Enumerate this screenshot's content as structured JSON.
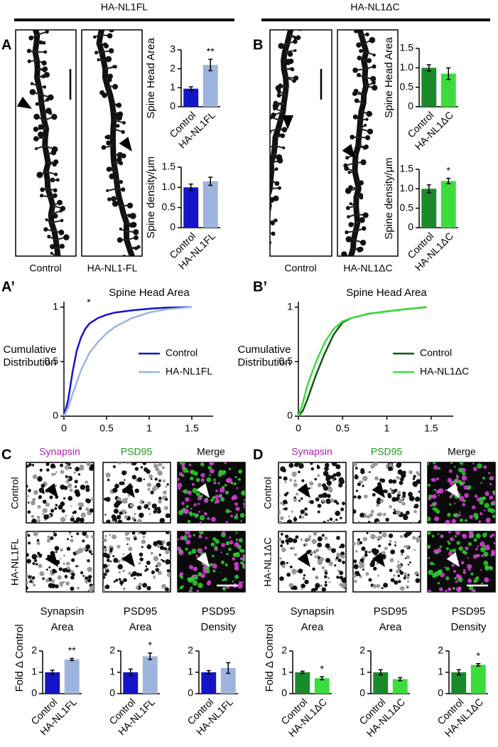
{
  "headers": [
    "HA-NL1FL",
    "HA-NL1ΔC"
  ],
  "panel_labels": [
    "A",
    "B",
    "A’",
    "B’",
    "C",
    "D"
  ],
  "images": {
    "A": [
      "Control",
      "HA-NL1-FL"
    ],
    "B": [
      "Control",
      "HA-NL1ΔC"
    ],
    "C": {
      "columns": [
        "Synapsin",
        "PSD95",
        "Merge"
      ],
      "rows": [
        "Control",
        "HA-NL1FL"
      ]
    },
    "D": {
      "columns": [
        "Synapsin",
        "PSD95",
        "Merge"
      ],
      "rows": [
        "Control",
        "HA-NL1ΔC"
      ]
    }
  },
  "chart_data": [
    {
      "type": "bar",
      "ylabel": "Spine Head Area",
      "categories": [
        "Control",
        "HA-NL1FL"
      ],
      "values": [
        0.95,
        2.2
      ],
      "errors": [
        0.1,
        0.3
      ],
      "colors": [
        "#1414c8",
        "#9db4de"
      ],
      "ylim": [
        0,
        3
      ],
      "yticks": [
        0,
        1,
        2,
        3
      ],
      "significance": "**"
    },
    {
      "type": "bar",
      "ylabel": "Spine density/μm",
      "categories": [
        "Control",
        "HA-NL1FL"
      ],
      "values": [
        1.0,
        1.15
      ],
      "errors": [
        0.08,
        0.1
      ],
      "colors": [
        "#1414c8",
        "#9db4de"
      ],
      "ylim": [
        0,
        1.5
      ],
      "yticks": [
        0,
        0.5,
        {
          "value": 1,
          "label": "1.0"
        },
        1.5
      ]
    },
    {
      "type": "bar",
      "ylabel": "Spine Head Area",
      "categories": [
        "Control",
        "HA-NL1ΔC"
      ],
      "values": [
        1.0,
        0.85
      ],
      "errors": [
        0.08,
        0.15
      ],
      "colors": [
        "#1b8a2a",
        "#3ddc3d"
      ],
      "ylim": [
        0,
        1.5
      ],
      "yticks": [
        0,
        0.5,
        {
          "value": 1,
          "label": "1.0"
        },
        1.5
      ]
    },
    {
      "type": "bar",
      "ylabel": "Spine density/μm",
      "categories": [
        "Control",
        "HA-NL1ΔC"
      ],
      "values": [
        1.0,
        1.2
      ],
      "errors": [
        0.1,
        0.07
      ],
      "colors": [
        "#1b8a2a",
        "#3ddc3d"
      ],
      "ylim": [
        0,
        1.5
      ],
      "yticks": [
        0,
        0.5,
        {
          "value": 1,
          "label": "1.0"
        },
        1.5
      ],
      "significance": "*"
    },
    {
      "type": "line",
      "title": "Spine Head Area",
      "ylabel": [
        "Cumulative",
        "Distribution"
      ],
      "significance": "*",
      "xlim": [
        0,
        1.75
      ],
      "xticks": [
        0,
        0.5,
        1,
        1.5
      ],
      "ylim": [
        0,
        1.05
      ],
      "yticks": [
        0,
        0.5,
        1
      ],
      "series": [
        {
          "name": "Control",
          "color": "#1414c8",
          "x": [
            0,
            0.05,
            0.1,
            0.15,
            0.2,
            0.25,
            0.3,
            0.4,
            0.5,
            0.6,
            0.8,
            1.0,
            1.2,
            1.5
          ],
          "values": [
            0,
            0.15,
            0.4,
            0.6,
            0.72,
            0.8,
            0.85,
            0.9,
            0.93,
            0.95,
            0.97,
            0.985,
            0.995,
            1
          ]
        },
        {
          "name": "HA-NL1FL",
          "color": "#9db4de",
          "x": [
            0,
            0.05,
            0.1,
            0.2,
            0.3,
            0.4,
            0.5,
            0.6,
            0.7,
            0.8,
            1.0,
            1.2,
            1.5
          ],
          "values": [
            0,
            0.08,
            0.2,
            0.42,
            0.58,
            0.68,
            0.76,
            0.82,
            0.86,
            0.9,
            0.95,
            0.98,
            1
          ]
        }
      ]
    },
    {
      "type": "line",
      "title": "Spine Head Area",
      "ylabel": [
        "Cumulative",
        "Distribution"
      ],
      "xlim": [
        0,
        1.75
      ],
      "xticks": [
        0,
        0.5,
        1,
        1.5
      ],
      "ylim": [
        0,
        1.05
      ],
      "yticks": [
        0,
        0.5,
        1
      ],
      "series": [
        {
          "name": "Control",
          "color": "#0f5a14",
          "x": [
            0,
            0.05,
            0.1,
            0.2,
            0.3,
            0.4,
            0.5,
            0.6,
            0.8,
            1.0,
            1.2,
            1.45
          ],
          "values": [
            0,
            0.05,
            0.15,
            0.38,
            0.58,
            0.75,
            0.86,
            0.9,
            0.94,
            0.96,
            0.98,
            1
          ]
        },
        {
          "name": "HA-NL1ΔC",
          "color": "#3ddc3d",
          "x": [
            0,
            0.05,
            0.1,
            0.2,
            0.3,
            0.4,
            0.5,
            0.6,
            0.8,
            1.0,
            1.2,
            1.45
          ],
          "values": [
            0,
            0.12,
            0.28,
            0.5,
            0.68,
            0.8,
            0.87,
            0.9,
            0.94,
            0.96,
            0.98,
            1
          ]
        }
      ]
    },
    {
      "type": "bar",
      "title": [
        "Synapsin",
        "Area"
      ],
      "ylabel": "Fold Δ Control",
      "categories": [
        "Control",
        "HA-NL1FL"
      ],
      "values": [
        1.0,
        1.6
      ],
      "errors": [
        0.1,
        0.05
      ],
      "colors": [
        "#1414c8",
        "#9db4de"
      ],
      "ylim": [
        0,
        2
      ],
      "yticks": [
        0,
        1,
        2
      ],
      "significance": "**"
    },
    {
      "type": "bar",
      "title": [
        "PSD95",
        "Area"
      ],
      "categories": [
        "Control",
        "HA-NL1FL"
      ],
      "values": [
        1.0,
        1.75
      ],
      "errors": [
        0.15,
        0.15
      ],
      "colors": [
        "#1414c8",
        "#9db4de"
      ],
      "ylim": [
        0,
        2
      ],
      "yticks": [
        0,
        1,
        2
      ],
      "significance": "*"
    },
    {
      "type": "bar",
      "title": [
        "PSD95",
        "Density"
      ],
      "categories": [
        "Control",
        "HA-NL1FL"
      ],
      "values": [
        1.0,
        1.2
      ],
      "errors": [
        0.08,
        0.25
      ],
      "colors": [
        "#1414c8",
        "#9db4de"
      ],
      "ylim": [
        0,
        2
      ],
      "yticks": [
        0,
        1,
        2
      ]
    },
    {
      "type": "bar",
      "title": [
        "Synapsin",
        "Area"
      ],
      "ylabel": "Fold Δ Control",
      "categories": [
        "Control",
        "HA-NL1ΔC"
      ],
      "values": [
        1.0,
        0.72
      ],
      "errors": [
        0.05,
        0.07
      ],
      "colors": [
        "#1b8a2a",
        "#3ddc3d"
      ],
      "ylim": [
        0,
        2
      ],
      "yticks": [
        0,
        1,
        2
      ],
      "significance": "*"
    },
    {
      "type": "bar",
      "title": [
        "PSD95",
        "Area"
      ],
      "categories": [
        "Control",
        "HA-NL1ΔC"
      ],
      "values": [
        1.0,
        0.68
      ],
      "errors": [
        0.12,
        0.07
      ],
      "colors": [
        "#1b8a2a",
        "#3ddc3d"
      ],
      "ylim": [
        0,
        2
      ],
      "yticks": [
        0,
        1,
        2
      ]
    },
    {
      "type": "bar",
      "title": [
        "PSD95",
        "Density"
      ],
      "categories": [
        "Control",
        "HA-NL1ΔC"
      ],
      "values": [
        1.0,
        1.35
      ],
      "errors": [
        0.12,
        0.06
      ],
      "colors": [
        "#1b8a2a",
        "#3ddc3d"
      ],
      "ylim": [
        0,
        2
      ],
      "yticks": [
        0,
        1,
        2
      ],
      "significance": "*"
    }
  ]
}
